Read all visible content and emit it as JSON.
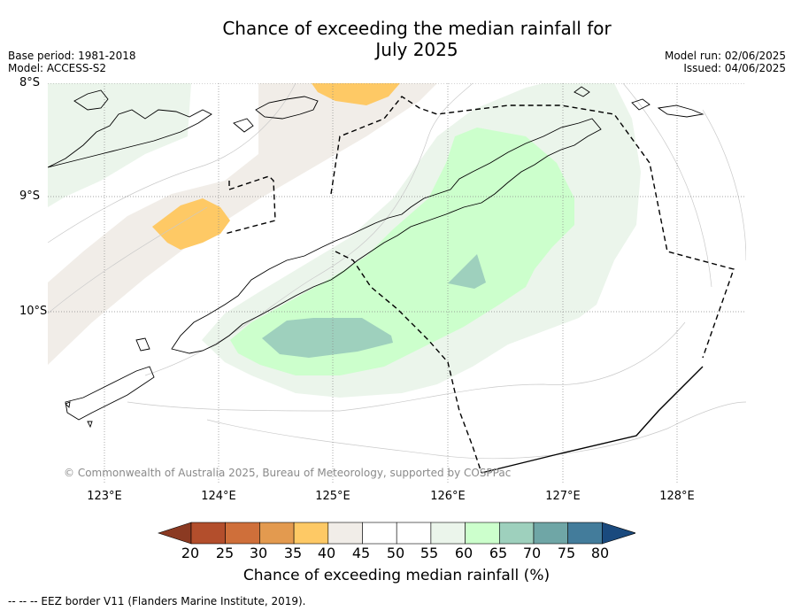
{
  "title_line1": "Chance of exceeding the median rainfall for",
  "title_line2": "July 2025",
  "base_period": "Base period: 1981-2018",
  "model": "Model: ACCESS-S2",
  "model_run": "Model run: 02/06/2025",
  "issued": "Issued: 04/06/2025",
  "lat_labels": [
    "8°S",
    "9°S",
    "10°S"
  ],
  "lon_labels": [
    "123°E",
    "124°E",
    "125°E",
    "126°E",
    "127°E",
    "128°E"
  ],
  "copyright": "© Commonwealth of Australia 2025, Bureau of Meteorology, supported by COSPPac",
  "colorbar": {
    "ticks": [
      "20",
      "25",
      "30",
      "35",
      "40",
      "45",
      "50",
      "55",
      "60",
      "65",
      "70",
      "75",
      "80"
    ],
    "label": "Chance of exceeding median rainfall (%)",
    "colors": [
      "#8b3a22",
      "#b34e2c",
      "#cf6f3a",
      "#e39a4f",
      "#fec965",
      "#f1ede8",
      "#ffffff",
      "#ffffff",
      "#ebf5eb",
      "#ccffcc",
      "#9ed0bd",
      "#6fa6a6",
      "#437c9b",
      "#1a4a7e"
    ]
  },
  "footer": "--  --  -- EEZ border V11 (Flanders Marine Institute, 2019)."
}
